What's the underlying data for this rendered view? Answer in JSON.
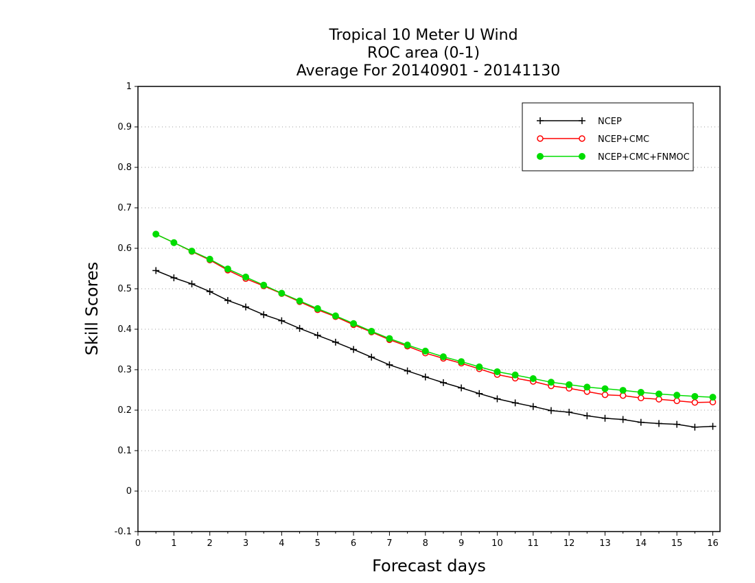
{
  "chart_data": {
    "type": "line",
    "title_lines": [
      "Tropical 10 Meter U Wind",
      "ROC area (0-1)",
      "Average For 20140901 - 20141130"
    ],
    "xlabel": "Forecast days",
    "ylabel": "Skill Scores",
    "xlim": [
      0,
      16.2
    ],
    "ylim": [
      -0.1,
      1
    ],
    "xticks": [
      0,
      1,
      2,
      3,
      4,
      5,
      6,
      7,
      8,
      9,
      10,
      11,
      12,
      13,
      14,
      15,
      16
    ],
    "yticks": [
      -0.1,
      0,
      0.1,
      0.2,
      0.3,
      0.4,
      0.5,
      0.6,
      0.7,
      0.8,
      0.9,
      1
    ],
    "ytick_labels": [
      "-0.1",
      "0",
      "0.1",
      "0.2",
      "0.3",
      "0.4",
      "0.5",
      "0.6",
      "0.7",
      "0.8",
      "0.9",
      "1"
    ],
    "grid": "horizontal dotted",
    "legend_position": "top-right",
    "x": [
      0.5,
      1,
      1.5,
      2,
      2.5,
      3,
      3.5,
      4,
      4.5,
      5,
      5.5,
      6,
      6.5,
      7,
      7.5,
      8,
      8.5,
      9,
      9.5,
      10,
      10.5,
      11,
      11.5,
      12,
      12.5,
      13,
      13.5,
      14,
      14.5,
      15,
      15.5,
      16
    ],
    "series": [
      {
        "name": "NCEP",
        "color": "#000000",
        "marker": "plus",
        "values": [
          0.545,
          0.527,
          0.512,
          0.493,
          0.471,
          0.455,
          0.436,
          0.421,
          0.402,
          0.385,
          0.368,
          0.35,
          0.331,
          0.312,
          0.297,
          0.282,
          0.268,
          0.255,
          0.241,
          0.228,
          0.218,
          0.209,
          0.199,
          0.195,
          0.186,
          0.18,
          0.177,
          0.17,
          0.167,
          0.165,
          0.158,
          0.16
        ]
      },
      {
        "name": "NCEP+CMC",
        "color": "#ff0000",
        "marker": "open-circle",
        "values": [
          0.635,
          0.614,
          0.592,
          0.571,
          0.546,
          0.525,
          0.507,
          0.488,
          0.468,
          0.448,
          0.431,
          0.411,
          0.393,
          0.374,
          0.358,
          0.341,
          0.328,
          0.316,
          0.302,
          0.288,
          0.279,
          0.271,
          0.26,
          0.254,
          0.246,
          0.238,
          0.236,
          0.23,
          0.227,
          0.223,
          0.219,
          0.22
        ]
      },
      {
        "name": "NCEP+CMC+FNMOC",
        "color": "#00dd00",
        "marker": "filled-circle",
        "values": [
          0.635,
          0.614,
          0.593,
          0.573,
          0.549,
          0.529,
          0.509,
          0.489,
          0.47,
          0.451,
          0.433,
          0.414,
          0.395,
          0.377,
          0.361,
          0.346,
          0.332,
          0.32,
          0.307,
          0.295,
          0.287,
          0.278,
          0.269,
          0.263,
          0.257,
          0.253,
          0.249,
          0.244,
          0.24,
          0.237,
          0.234,
          0.232
        ]
      }
    ]
  }
}
